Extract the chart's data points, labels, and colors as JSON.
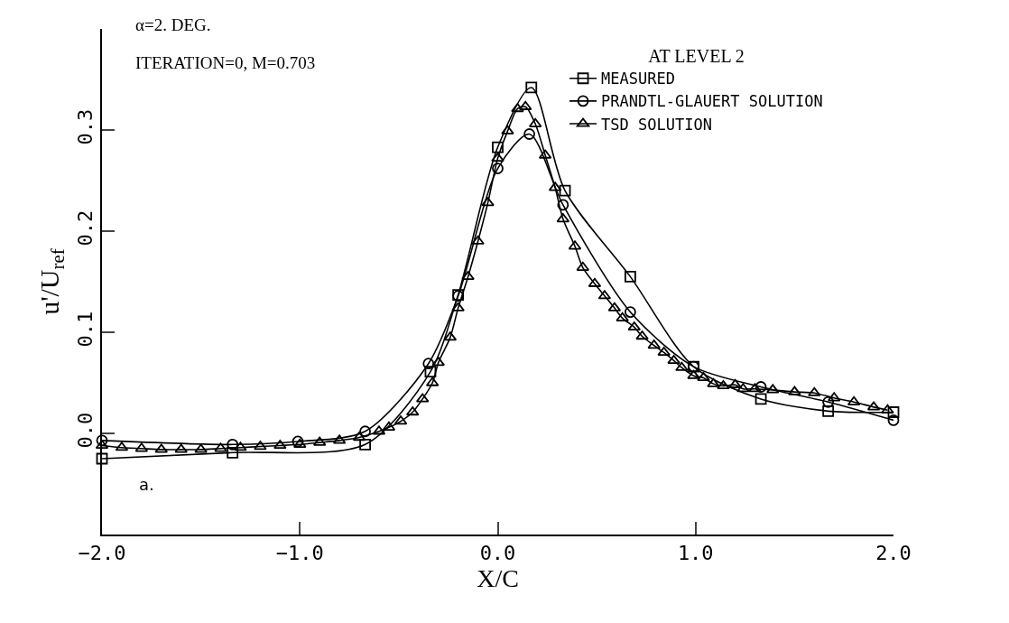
{
  "chart_data": {
    "type": "line",
    "xlabel": "X/C",
    "ylabel": "u'/U$_{ref}$",
    "legend_title": "AT LEVEL 2",
    "legend": "top right",
    "grid": false,
    "line_style": "solid",
    "xlim": [
      -2,
      2
    ],
    "xticks": [
      {
        "value": -2,
        "label": "−2.0"
      },
      {
        "value": -1,
        "label": "−1.0"
      },
      {
        "value": 0,
        "label": "0.0"
      },
      {
        "value": 1,
        "label": "1.0"
      },
      {
        "value": 2,
        "label": "2.0"
      }
    ],
    "ylim": [
      -0.1,
      0.4
    ],
    "yticks": [
      {
        "value": 0,
        "label": "0.0"
      },
      0.1,
      0.2,
      0.3
    ],
    "annotations": [
      "α=2. DEG.",
      "ITERATION=0, M=0.703",
      "a."
    ],
    "series": [
      {
        "name": "MEASURED",
        "color": "#000000",
        "marker": "square",
        "x": [
          -2.0,
          -1.34,
          -0.67,
          -0.34,
          -0.2,
          0.0,
          0.17,
          0.34,
          0.67,
          0.99,
          1.33,
          1.67,
          2.0
        ],
        "values": [
          -0.025,
          -0.019,
          -0.011,
          0.061,
          0.137,
          0.283,
          0.342,
          0.24,
          0.155,
          0.066,
          0.034,
          0.022,
          0.021
        ]
      },
      {
        "name": "PRANDTL-GLAUERT SOLUTION",
        "color": "#000000",
        "marker": "circle",
        "x": [
          -2.0,
          -1.34,
          -1.01,
          -0.67,
          -0.35,
          -0.2,
          0.0,
          0.16,
          0.33,
          0.67,
          0.99,
          1.33,
          1.67,
          2.0
        ],
        "values": [
          -0.007,
          -0.011,
          -0.008,
          0.002,
          0.069,
          0.136,
          0.262,
          0.296,
          0.226,
          0.12,
          0.066,
          0.046,
          0.031,
          0.013
        ]
      },
      {
        "name": "TSD SOLUTION",
        "color": "#000000",
        "marker": "triangle",
        "x": [
          -2.0,
          -1.9,
          -1.8,
          -1.7,
          -1.6,
          -1.5,
          -1.4,
          -1.3,
          -1.2,
          -1.1,
          -1.0,
          -0.9,
          -0.8,
          -0.7,
          -0.6,
          -0.55,
          -0.49,
          -0.43,
          -0.38,
          -0.33,
          -0.3,
          -0.24,
          -0.2,
          -0.15,
          -0.1,
          -0.05,
          0.0,
          0.05,
          0.1,
          0.14,
          0.19,
          0.24,
          0.29,
          0.33,
          0.39,
          0.43,
          0.49,
          0.54,
          0.59,
          0.63,
          0.69,
          0.73,
          0.79,
          0.84,
          0.89,
          0.93,
          0.99,
          1.04,
          1.09,
          1.14,
          1.2,
          1.24,
          1.3,
          1.39,
          1.5,
          1.6,
          1.7,
          1.8,
          1.9,
          1.97
        ],
        "values": [
          -0.012,
          -0.014,
          -0.015,
          -0.016,
          -0.016,
          -0.016,
          -0.015,
          -0.014,
          -0.013,
          -0.012,
          -0.011,
          -0.009,
          -0.007,
          -0.004,
          0.002,
          0.006,
          0.012,
          0.021,
          0.034,
          0.05,
          0.07,
          0.095,
          0.124,
          0.155,
          0.19,
          0.228,
          0.272,
          0.299,
          0.321,
          0.323,
          0.306,
          0.275,
          0.243,
          0.212,
          0.185,
          0.164,
          0.148,
          0.136,
          0.124,
          0.114,
          0.105,
          0.096,
          0.087,
          0.08,
          0.072,
          0.065,
          0.057,
          0.055,
          0.049,
          0.047,
          0.048,
          0.044,
          0.044,
          0.043,
          0.041,
          0.04,
          0.035,
          0.031,
          0.026,
          0.023
        ]
      }
    ]
  }
}
